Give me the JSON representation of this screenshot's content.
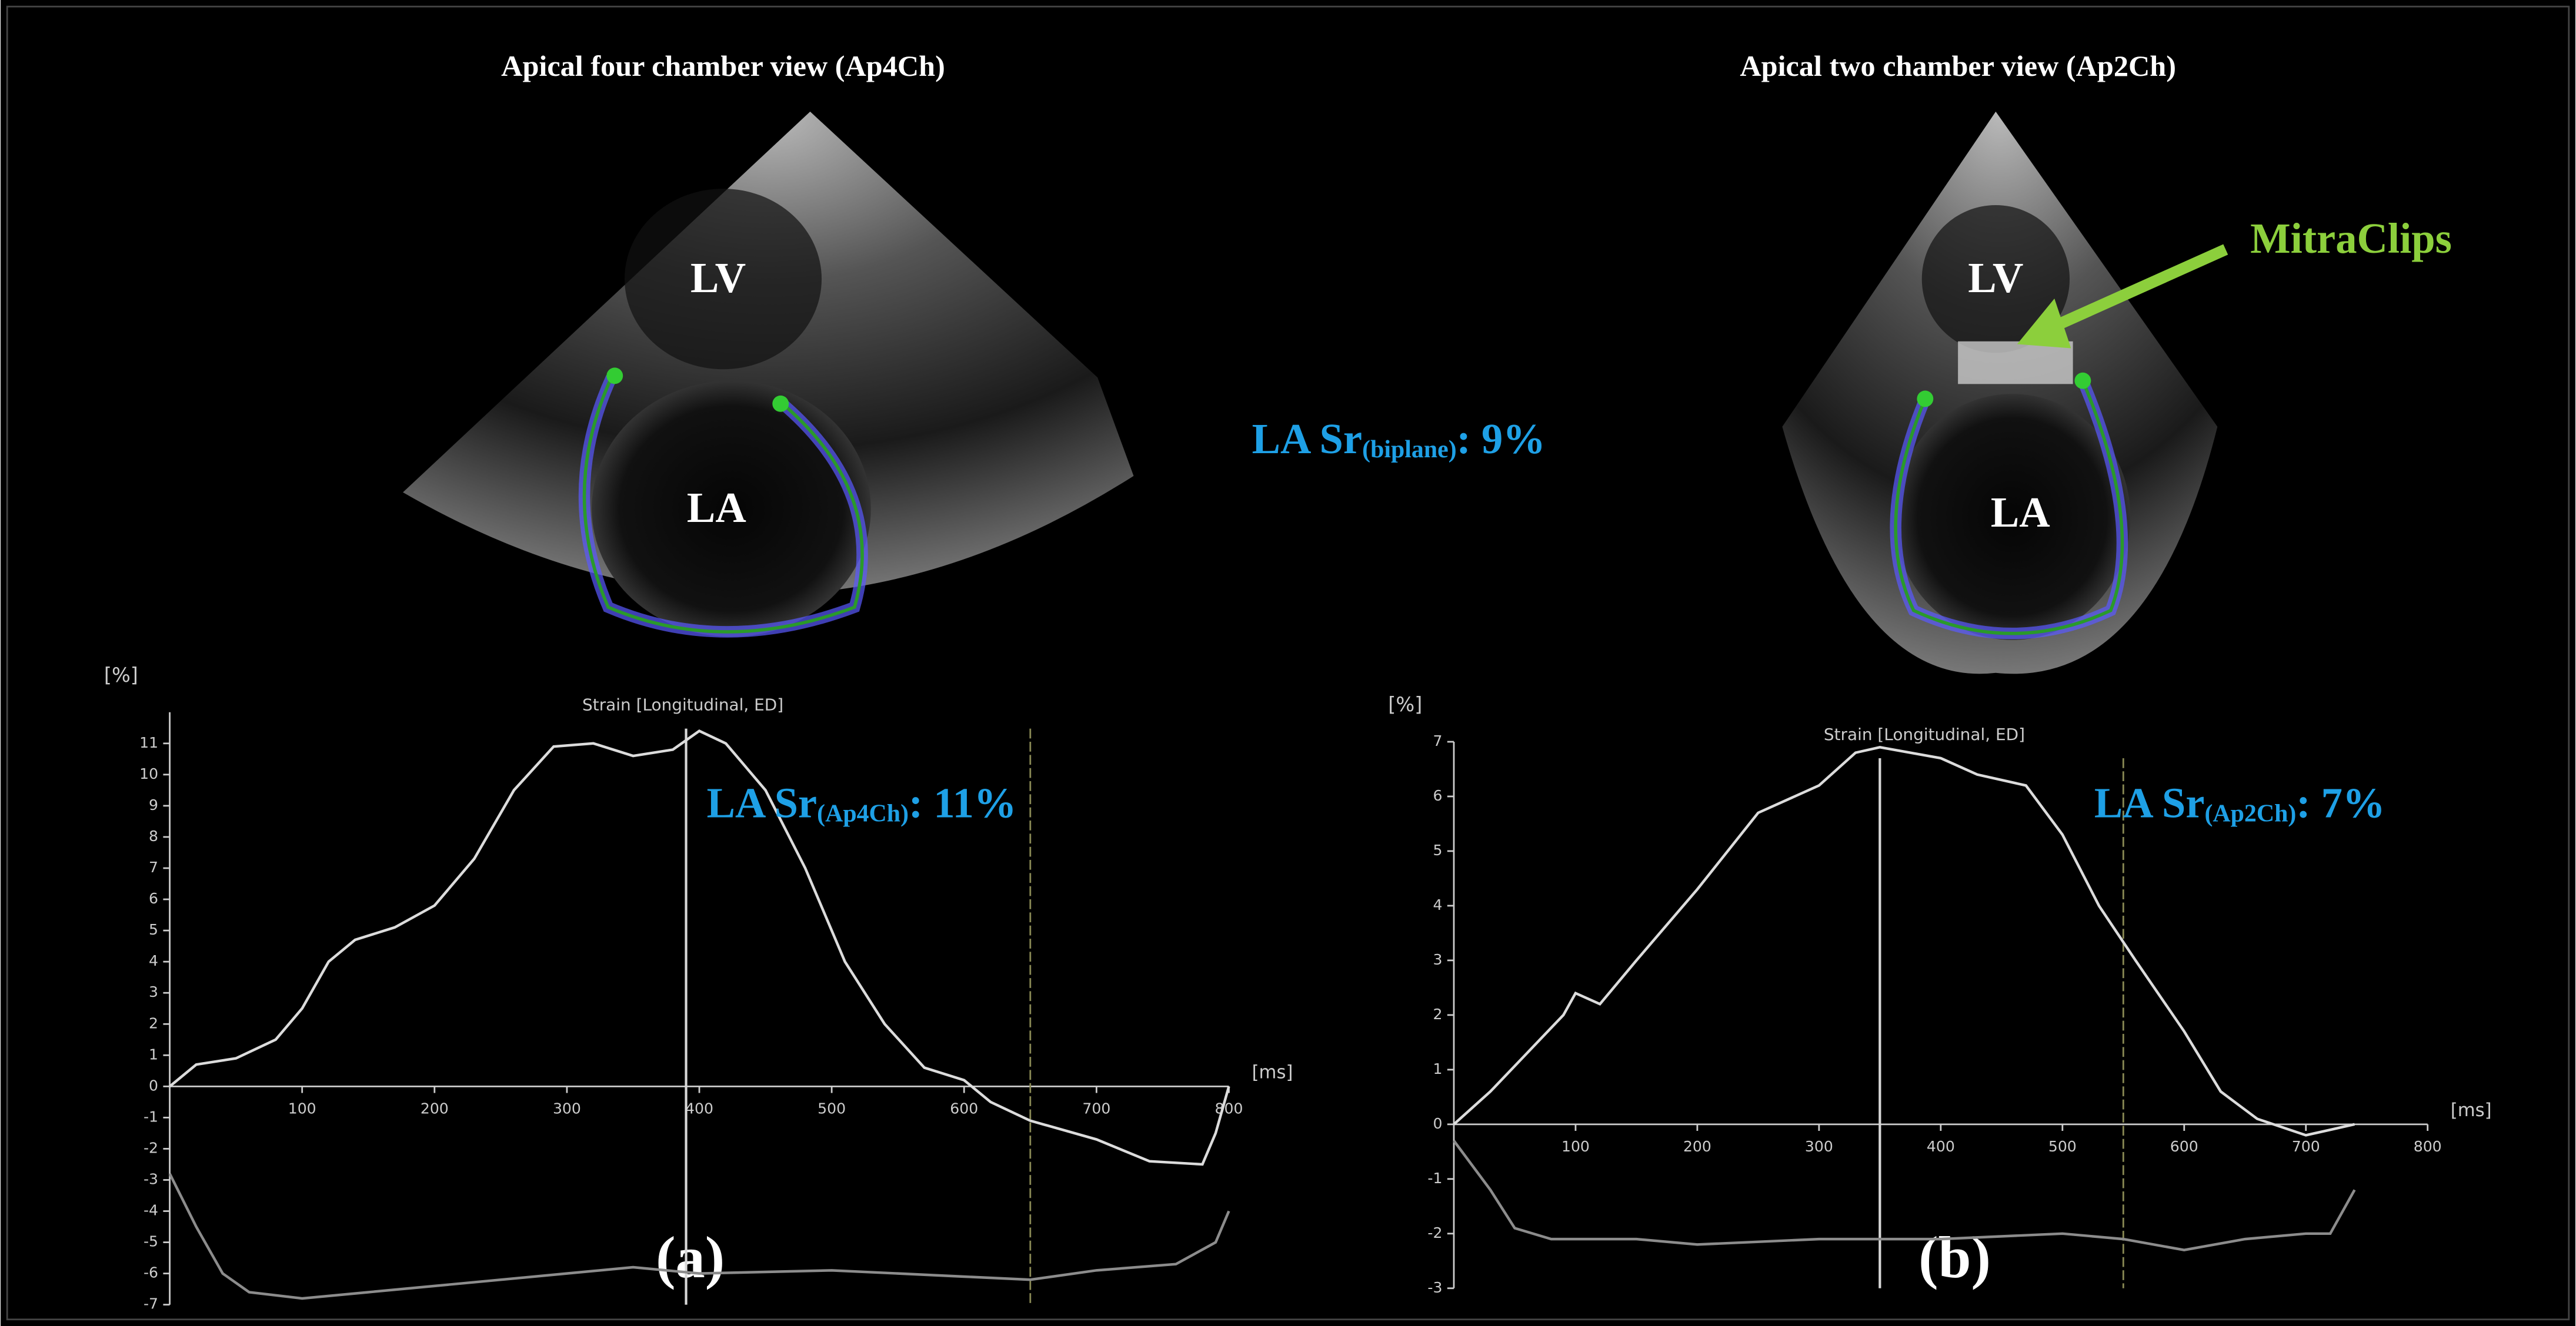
{
  "figure": {
    "panels": [
      {
        "view_title": "Apical four chamber view (Ap4Ch)",
        "labels": [
          "LV",
          "LA"
        ],
        "letter": "(a)"
      },
      {
        "view_title": "Apical two chamber view (Ap2Ch)",
        "labels": [
          "LV",
          "LA"
        ],
        "letter": "(b)"
      }
    ],
    "biplane": {
      "text": "LA Sr",
      "subscript": "(biplane)",
      "suffix": ": 9%"
    },
    "arrow_label": "MitraClips"
  },
  "chart_data": [
    {
      "type": "line",
      "title": "Strain [Longitudinal, ED]",
      "y_label": "[%]",
      "x_label": "[ms]",
      "xlim": [
        0,
        800
      ],
      "ylim": [
        -7,
        12
      ],
      "xticks": [
        100,
        200,
        300,
        400,
        500,
        600,
        700,
        800
      ],
      "yticks": [
        -7,
        -6,
        -5,
        -4,
        -3,
        -2,
        -1,
        0,
        1,
        2,
        3,
        4,
        5,
        6,
        7,
        8,
        9,
        10,
        11
      ],
      "annotation": {
        "text": "LA Sr",
        "subscript": "(Ap4Ch)",
        "suffix": ": 11%"
      },
      "markers_x": [
        390,
        650
      ],
      "marker_colors": [
        "#d8d8d8",
        "#8a8a55"
      ],
      "series": [
        {
          "color": "#dcdcdc",
          "x": [
            0,
            20,
            50,
            80,
            100,
            120,
            140,
            170,
            200,
            230,
            260,
            290,
            320,
            350,
            380,
            400,
            420,
            450,
            480,
            510,
            540,
            570,
            600,
            620,
            650,
            700,
            740,
            780,
            790,
            800
          ],
          "values": [
            0,
            0.7,
            0.9,
            1.5,
            2.5,
            4,
            4.7,
            5.1,
            5.8,
            7.3,
            9.5,
            10.9,
            11,
            10.6,
            10.8,
            11.4,
            11,
            9.5,
            7,
            4,
            2,
            0.6,
            0.2,
            -0.5,
            -1.1,
            -1.7,
            -2.4,
            -2.5,
            -1.5,
            0
          ]
        },
        {
          "color": "#8c8c8c",
          "x": [
            0,
            20,
            40,
            60,
            100,
            150,
            200,
            300,
            350,
            400,
            500,
            600,
            650,
            700,
            760,
            790,
            800
          ],
          "values": [
            -2.8,
            -4.5,
            -6,
            -6.6,
            -6.8,
            -6.6,
            -6.4,
            -6,
            -5.8,
            -6,
            -5.9,
            -6.1,
            -6.2,
            -5.9,
            -5.7,
            -5,
            -4
          ]
        }
      ]
    },
    {
      "type": "line",
      "title": "Strain [Longitudinal, ED]",
      "y_label": "[%]",
      "x_label": "[ms]",
      "xlim": [
        0,
        800
      ],
      "ylim": [
        -3,
        7
      ],
      "xticks": [
        100,
        200,
        300,
        400,
        500,
        600,
        700,
        800
      ],
      "yticks": [
        -3,
        -2,
        -1,
        0,
        1,
        2,
        3,
        4,
        5,
        6,
        7
      ],
      "annotation": {
        "text": "LA Sr",
        "subscript": "(Ap2Ch)",
        "suffix": ": 7%"
      },
      "markers_x": [
        350,
        550
      ],
      "marker_colors": [
        "#d8d8d8",
        "#8a8a55"
      ],
      "series": [
        {
          "color": "#dcdcdc",
          "x": [
            0,
            30,
            60,
            90,
            100,
            120,
            150,
            200,
            250,
            300,
            330,
            350,
            400,
            430,
            470,
            500,
            530,
            560,
            600,
            630,
            660,
            700,
            720,
            740
          ],
          "values": [
            0,
            0.6,
            1.3,
            2,
            2.4,
            2.2,
            3,
            4.3,
            5.7,
            6.2,
            6.8,
            6.9,
            6.7,
            6.4,
            6.2,
            5.3,
            4,
            3,
            1.7,
            0.6,
            0.1,
            -0.2,
            -0.1,
            0
          ]
        },
        {
          "color": "#8c8c8c",
          "x": [
            0,
            30,
            50,
            80,
            150,
            200,
            300,
            400,
            500,
            550,
            600,
            650,
            700,
            720,
            740
          ],
          "values": [
            -0.3,
            -1.2,
            -1.9,
            -2.1,
            -2.1,
            -2.2,
            -2.1,
            -2.1,
            -2,
            -2.1,
            -2.3,
            -2.1,
            -2,
            -2,
            -1.2
          ]
        }
      ]
    }
  ]
}
